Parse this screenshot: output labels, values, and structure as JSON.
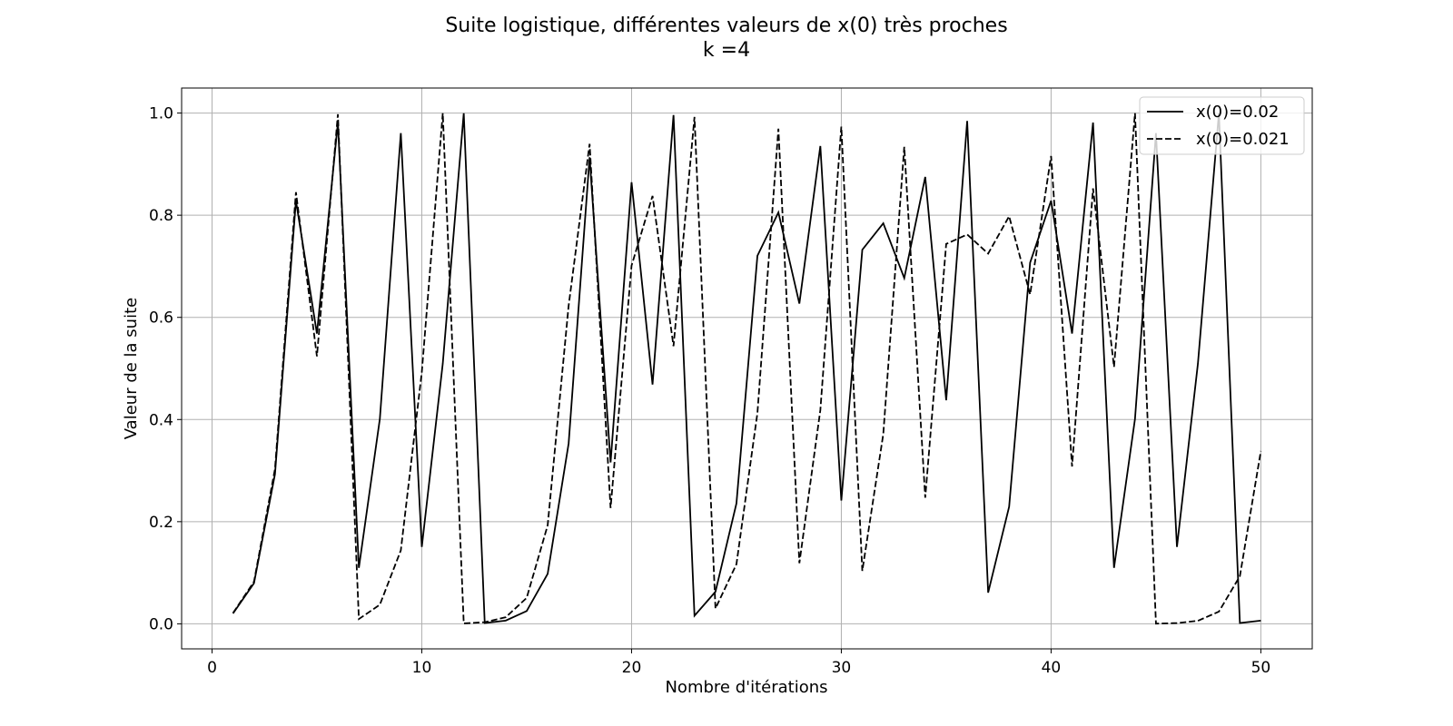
{
  "chart_data": {
    "type": "line",
    "title": "Suite logistique, différentes valeurs de x(0) très proches",
    "subtitle": "k =4",
    "xlabel": "Nombre d'itérations",
    "ylabel": "Valeur de la suite",
    "xlim": [
      -1.45,
      52.45
    ],
    "ylim": [
      -0.049,
      1.049
    ],
    "xticks": [
      0,
      10,
      20,
      30,
      40,
      50
    ],
    "yticks": [
      0.0,
      0.2,
      0.4,
      0.6,
      0.8,
      1.0
    ],
    "xtick_labels": [
      "0",
      "10",
      "20",
      "30",
      "40",
      "50"
    ],
    "ytick_labels": [
      "0.0",
      "0.2",
      "0.4",
      "0.6",
      "0.8",
      "1.0"
    ],
    "grid": true,
    "legend_position": "top-right",
    "series": [
      {
        "name": "x(0)=0.02",
        "style": "solid",
        "color": "#000000",
        "x": [
          1,
          2,
          3,
          4,
          5,
          6,
          7,
          8,
          9,
          10,
          11,
          12,
          13,
          14,
          15,
          16,
          17,
          18,
          19,
          20,
          21,
          22,
          23,
          24,
          25,
          26,
          27,
          28,
          29,
          30,
          31,
          32,
          33,
          34,
          35,
          36,
          37,
          38,
          39,
          40,
          41,
          42,
          43,
          44,
          45,
          46,
          47,
          48,
          49,
          50
        ],
        "values": [
          0.0203,
          0.0796,
          0.293,
          0.8285,
          0.5683,
          0.9813,
          0.1096,
          0.4011,
          0.9608,
          0.1505,
          0.5095,
          0.9996,
          0.0016,
          0.0063,
          0.0251,
          0.0978,
          0.353,
          0.9135,
          0.3159,
          0.8645,
          0.4685,
          0.996,
          0.016,
          0.0629,
          0.2357,
          0.7206,
          0.8054,
          0.627,
          0.9355,
          0.2413,
          0.7323,
          0.7842,
          0.6768,
          0.875,
          0.4377,
          0.9845,
          0.0611,
          0.2294,
          0.7071,
          0.8285,
          0.5683,
          0.9813,
          0.1096,
          0.4011,
          0.9608,
          0.1505,
          0.5095,
          0.9996,
          0.0016,
          0.0063
        ]
      },
      {
        "name": "x(0)=0.021",
        "style": "dashed",
        "color": "#000000",
        "x": [
          1,
          2,
          3,
          4,
          5,
          6,
          7,
          8,
          9,
          10,
          11,
          12,
          13,
          14,
          15,
          16,
          17,
          18,
          19,
          20,
          21,
          22,
          23,
          24,
          25,
          26,
          27,
          28,
          29,
          30,
          31,
          32,
          33,
          34,
          35,
          36,
          37,
          38,
          39,
          40,
          41,
          42,
          43,
          44,
          45,
          46,
          47,
          48,
          49,
          50
        ],
        "values": [
          0.0211,
          0.0826,
          0.3032,
          0.8451,
          0.5237,
          0.9977,
          0.0094,
          0.0374,
          0.1439,
          0.4928,
          0.9998,
          0.0008,
          0.0032,
          0.0129,
          0.0508,
          0.1929,
          0.6228,
          0.9397,
          0.2268,
          0.7014,
          0.8378,
          0.5436,
          0.9924,
          0.0301,
          0.1168,
          0.4126,
          0.9694,
          0.1187,
          0.4185,
          0.9734,
          0.1036,
          0.3714,
          0.9339,
          0.2469,
          0.7438,
          0.7623,
          0.7248,
          0.7979,
          0.645,
          0.9159,
          0.308,
          0.8525,
          0.503,
          0.9999,
          0.0004,
          0.0015,
          0.006,
          0.0239,
          0.0933,
          0.3384
        ]
      }
    ]
  }
}
